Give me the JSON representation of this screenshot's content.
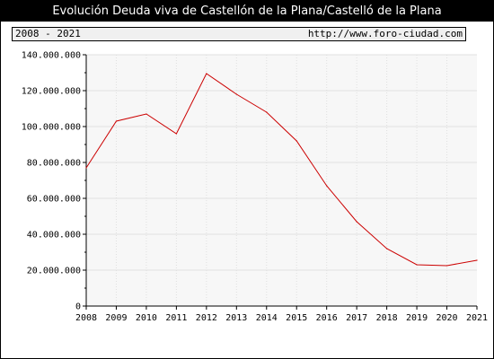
{
  "title": "Evolución Deuda viva de Castellón de la Plana/Castelló de la Plana",
  "period_label": "2008 - 2021",
  "source_url": "http://www.foro-ciudad.com",
  "colors": {
    "line": "#cc0000",
    "plot_background": "#f7f7f7",
    "grid": "#e0e0e0"
  },
  "chart_data": {
    "type": "line",
    "title": "Evolución Deuda viva de Castellón de la Plana/Castelló de la Plana",
    "xlabel": "",
    "ylabel": "",
    "x": [
      2008,
      2009,
      2010,
      2011,
      2012,
      2013,
      2014,
      2015,
      2016,
      2017,
      2018,
      2019,
      2020,
      2021
    ],
    "series": [
      {
        "values": [
          77000000,
          103000000,
          107000000,
          96000000,
          129500000,
          118000000,
          108000000,
          92000000,
          67000000,
          47000000,
          32000000,
          23000000,
          22500000,
          25500000
        ]
      }
    ],
    "ylim": [
      0,
      140000000
    ],
    "yticks": [
      0,
      20000000,
      40000000,
      60000000,
      80000000,
      100000000,
      120000000,
      140000000
    ],
    "ytick_labels": [
      "0",
      "20.000.000",
      "40.000.000",
      "60.000.000",
      "80.000.000",
      "100.000.000",
      "120.000.000",
      "140.000.000"
    ],
    "xtick_labels": [
      "2008",
      "2009",
      "2010",
      "2011",
      "2012",
      "2013",
      "2014",
      "2015",
      "2016",
      "2017",
      "2018",
      "2019",
      "2020",
      "2021"
    ],
    "grid": true
  }
}
